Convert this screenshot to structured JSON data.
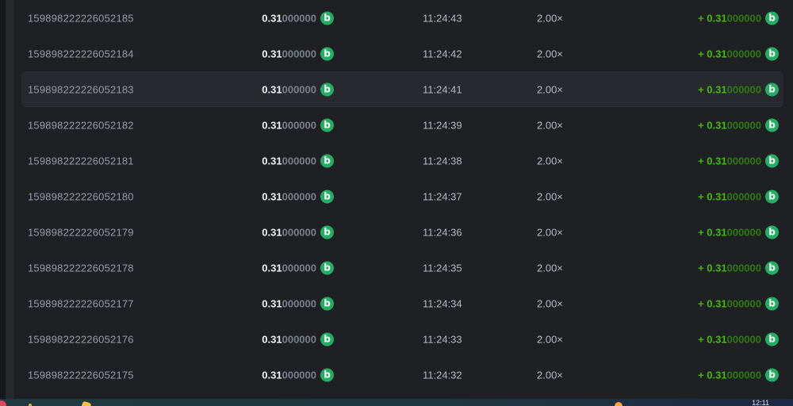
{
  "coin": {
    "symbol": "b",
    "name": "coin-icon",
    "color": "#24ae64"
  },
  "colors": {
    "payout_green": "#48b80e",
    "payout_green_dim": "#2f7a10",
    "coin_green": "#24ae64",
    "highlight_row_bg": "#27292e",
    "table_bg": "#1e2024"
  },
  "table": {
    "rows": [
      {
        "id": "159898222226052185",
        "amount_main": "0.31",
        "amount_zeros": "000000",
        "time": "11:24:43",
        "multiplier": "2.00×",
        "payout_main": "+ 0.31",
        "payout_zeros": "000000",
        "highlighted": false
      },
      {
        "id": "159898222226052184",
        "amount_main": "0.31",
        "amount_zeros": "000000",
        "time": "11:24:42",
        "multiplier": "2.00×",
        "payout_main": "+ 0.31",
        "payout_zeros": "000000",
        "highlighted": false
      },
      {
        "id": "159898222226052183",
        "amount_main": "0.31",
        "amount_zeros": "000000",
        "time": "11:24:41",
        "multiplier": "2.00×",
        "payout_main": "+ 0.31",
        "payout_zeros": "000000",
        "highlighted": true
      },
      {
        "id": "159898222226052182",
        "amount_main": "0.31",
        "amount_zeros": "000000",
        "time": "11:24:39",
        "multiplier": "2.00×",
        "payout_main": "+ 0.31",
        "payout_zeros": "000000",
        "highlighted": false
      },
      {
        "id": "159898222226052181",
        "amount_main": "0.31",
        "amount_zeros": "000000",
        "time": "11:24:38",
        "multiplier": "2.00×",
        "payout_main": "+ 0.31",
        "payout_zeros": "000000",
        "highlighted": false
      },
      {
        "id": "159898222226052180",
        "amount_main": "0.31",
        "amount_zeros": "000000",
        "time": "11:24:37",
        "multiplier": "2.00×",
        "payout_main": "+ 0.31",
        "payout_zeros": "000000",
        "highlighted": false
      },
      {
        "id": "159898222226052179",
        "amount_main": "0.31",
        "amount_zeros": "000000",
        "time": "11:24:36",
        "multiplier": "2.00×",
        "payout_main": "+ 0.31",
        "payout_zeros": "000000",
        "highlighted": false
      },
      {
        "id": "159898222226052178",
        "amount_main": "0.31",
        "amount_zeros": "000000",
        "time": "11:24:35",
        "multiplier": "2.00×",
        "payout_main": "+ 0.31",
        "payout_zeros": "000000",
        "highlighted": false
      },
      {
        "id": "159898222226052177",
        "amount_main": "0.31",
        "amount_zeros": "000000",
        "time": "11:24:34",
        "multiplier": "2.00×",
        "payout_main": "+ 0.31",
        "payout_zeros": "000000",
        "highlighted": false
      },
      {
        "id": "159898222226052176",
        "amount_main": "0.31",
        "amount_zeros": "000000",
        "time": "11:24:33",
        "multiplier": "2.00×",
        "payout_main": "+ 0.31",
        "payout_zeros": "000000",
        "highlighted": false
      },
      {
        "id": "159898222226052175",
        "amount_main": "0.31",
        "amount_zeros": "000000",
        "time": "11:24:32",
        "multiplier": "2.00×",
        "payout_main": "+ 0.31",
        "payout_zeros": "000000",
        "highlighted": false
      }
    ]
  },
  "taskbar": {
    "clock": "12:11"
  }
}
